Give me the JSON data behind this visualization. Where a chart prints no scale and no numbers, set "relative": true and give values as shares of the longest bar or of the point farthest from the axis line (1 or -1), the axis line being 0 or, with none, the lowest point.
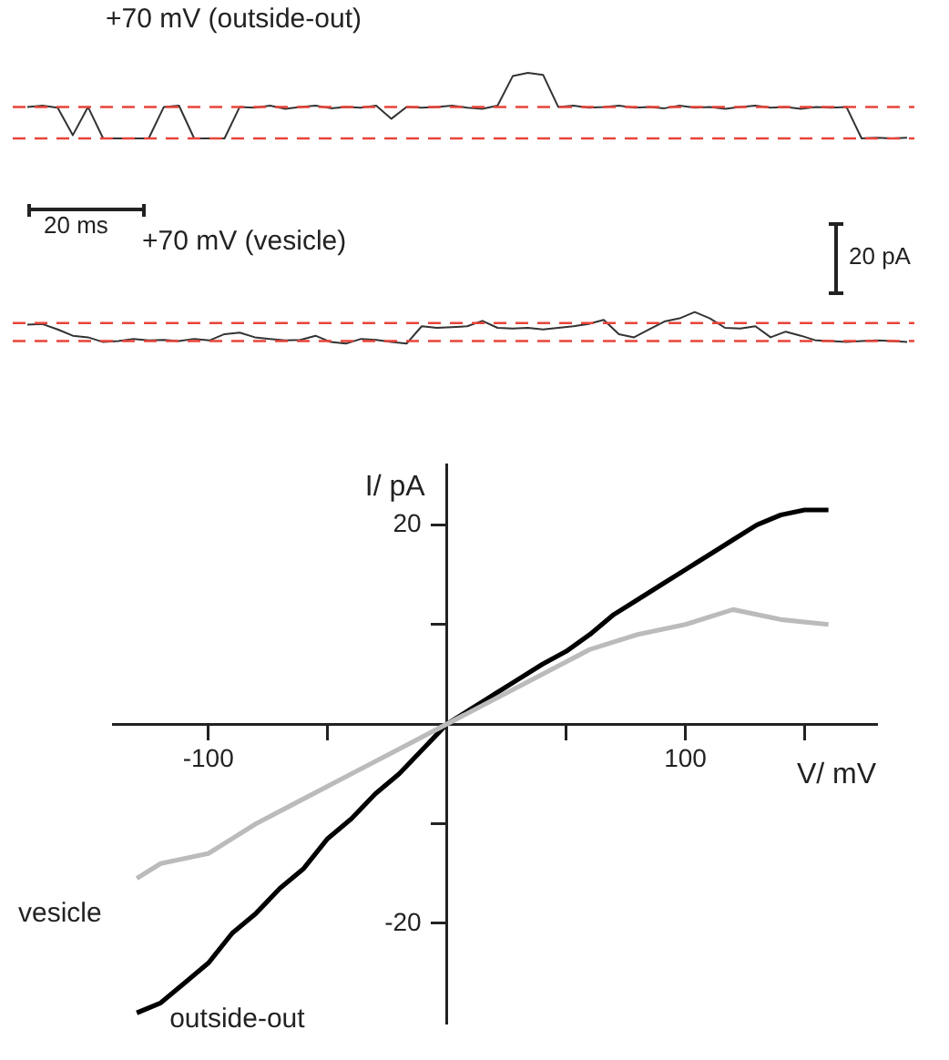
{
  "chart_data": [
    {
      "type": "line",
      "title": "+70 mV (outside-out)",
      "relative": true,
      "categories": [
        null,
        null,
        null,
        null,
        null,
        null,
        null,
        null,
        null,
        null,
        null,
        null,
        null,
        null,
        null,
        null,
        null,
        null,
        null,
        null,
        null,
        null,
        null,
        null,
        null,
        null,
        null,
        null,
        null,
        null,
        null,
        null,
        null,
        null,
        null,
        null,
        null,
        null,
        null,
        null,
        null,
        null,
        null,
        null,
        null,
        null,
        null,
        null,
        null,
        null,
        null,
        null,
        null,
        null,
        null,
        null,
        null,
        null,
        null
      ],
      "series": [
        {
          "color": "#333333",
          "values": [
            0.48,
            0.5,
            0.47,
            0.05,
            0.48,
            0,
            0,
            0,
            0,
            0.48,
            0.5,
            0,
            0,
            0,
            0.48,
            0.47,
            0.5,
            0.45,
            0.48,
            0.5,
            0.46,
            0.48,
            0.47,
            0.5,
            0.3,
            0.48,
            0.47,
            0.48,
            0.5,
            0.47,
            0.45,
            0.5,
            0.95,
            1,
            0.97,
            0.48,
            0.5,
            0.47,
            0.48,
            0.5,
            0.47,
            0.48,
            0.46,
            0.5,
            0.47,
            0.48,
            0.45,
            0.48,
            0.5,
            0.47,
            0.48,
            0.45,
            0.48,
            0.47,
            0.48,
            0,
            0.01,
            0,
            0.01
          ]
        }
      ],
      "ref_lines": [
        {
          "axis": "y",
          "value": 0.48,
          "color": "#e8443a",
          "line_style": "dashed"
        },
        {
          "axis": "y",
          "value": 0,
          "color": "#e8443a",
          "line_style": "dashed"
        }
      ],
      "annotations": [
        "20 ms"
      ],
      "legend": false,
      "marker": "none"
    },
    {
      "type": "line",
      "title": "+70 mV (vesicle)",
      "relative": true,
      "categories": [
        null,
        null,
        null,
        null,
        null,
        null,
        null,
        null,
        null,
        null,
        null,
        null,
        null,
        null,
        null,
        null,
        null,
        null,
        null,
        null,
        null,
        null,
        null,
        null,
        null,
        null,
        null,
        null,
        null,
        null,
        null,
        null,
        null,
        null,
        null,
        null,
        null,
        null,
        null,
        null,
        null,
        null,
        null,
        null,
        null,
        null,
        null,
        null,
        null,
        null,
        null,
        null,
        null,
        null,
        null,
        null,
        null,
        null,
        null
      ],
      "series": [
        {
          "color": "#333333",
          "values": [
            0.6,
            0.62,
            0.45,
            0.25,
            0.2,
            0.05,
            0.08,
            0.15,
            0.1,
            0.12,
            0.08,
            0.15,
            0.1,
            0.3,
            0.35,
            0.2,
            0.15,
            0.1,
            0.12,
            0.25,
            0.05,
            0,
            0.15,
            0.12,
            0.05,
            0,
            0.55,
            0.5,
            0.52,
            0.55,
            0.72,
            0.5,
            0.48,
            0.5,
            0.45,
            0.5,
            0.55,
            0.62,
            0.75,
            0.3,
            0.2,
            0.45,
            0.7,
            0.8,
            1,
            0.8,
            0.5,
            0.48,
            0.55,
            0.2,
            0.38,
            0.25,
            0.1,
            0.08,
            0.05,
            0.08,
            0.1,
            0.08,
            0.05
          ]
        }
      ],
      "ref_lines": [
        {
          "axis": "y",
          "value": 0.65,
          "color": "#e8443a",
          "line_style": "dashed"
        },
        {
          "axis": "y",
          "value": 0.08,
          "color": "#e8443a",
          "line_style": "dashed"
        }
      ],
      "annotations": [
        "20 pA"
      ],
      "legend": false,
      "marker": "none"
    },
    {
      "type": "line",
      "xlabel": "V/ mV",
      "ylabel": "I/ pA",
      "xlim": [
        -140,
        180
      ],
      "ylim": [
        -30,
        26
      ],
      "xticks": [
        -100,
        {
          "value": -50,
          "label": null
        },
        100,
        {
          "value": 50,
          "label": null
        },
        {
          "value": 150,
          "label": null
        }
      ],
      "yticks": [
        20,
        {
          "value": 10,
          "label": null
        },
        {
          "value": -10,
          "label": null
        },
        -20
      ],
      "grid": false,
      "legend": false,
      "marker": "none",
      "series": [
        {
          "name": "vesicle",
          "color": "#bbbbbb",
          "x": [
            -130,
            -120,
            -100,
            -80,
            -60,
            -40,
            -20,
            0,
            20,
            40,
            60,
            80,
            100,
            120,
            140,
            160
          ],
          "values": [
            -15.5,
            -14,
            -13,
            -10,
            -7.5,
            -5,
            -2.5,
            0,
            2.5,
            5,
            7.5,
            9,
            10,
            11.5,
            10.5,
            10
          ]
        },
        {
          "name": "outside-out",
          "color": "#000000",
          "x": [
            -130,
            -120,
            -110,
            -100,
            -90,
            -80,
            -70,
            -60,
            -50,
            -40,
            -30,
            -20,
            -10,
            0,
            10,
            20,
            30,
            40,
            50,
            60,
            70,
            80,
            90,
            100,
            110,
            120,
            130,
            140,
            150,
            160
          ],
          "values": [
            -29,
            -28,
            -26,
            -24,
            -21,
            -19,
            -16.5,
            -14.5,
            -11.5,
            -9.5,
            -7,
            -5,
            -2.5,
            0,
            1.5,
            3,
            4.5,
            6,
            7.3,
            9,
            11,
            12.5,
            14,
            15.5,
            17,
            18.5,
            20,
            21,
            21.5,
            21.5
          ]
        }
      ]
    }
  ]
}
